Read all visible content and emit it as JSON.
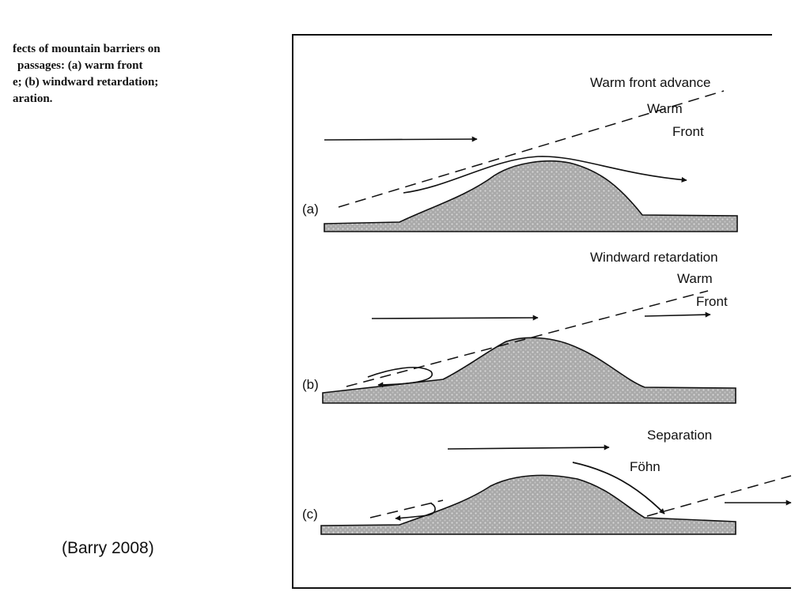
{
  "caption": {
    "lines": [
      "fects of mountain barriers on",
      "passages: (a) warm front",
      "e; (b) windward retardation;",
      "aration."
    ]
  },
  "citation": "(Barry 2008)",
  "panels": {
    "a": {
      "letter": "(a)",
      "title": "Warm front advance",
      "front_line1": "Warm",
      "front_line2": "Front"
    },
    "b": {
      "letter": "(b)",
      "title": "Windward retardation",
      "front_line1": "Warm",
      "front_line2": "Front"
    },
    "c": {
      "letter": "(c)",
      "title": "Separation",
      "wind_label": "Föhn"
    }
  },
  "colors": {
    "ink": "#111111",
    "terrain_fill": "#a9a9a9"
  }
}
